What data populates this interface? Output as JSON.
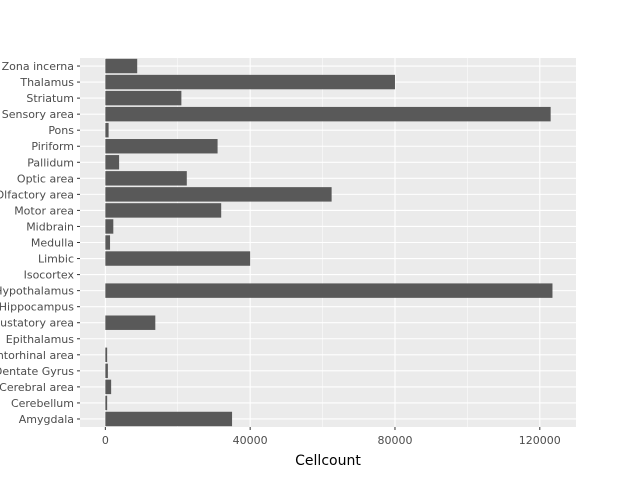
{
  "chart_data": {
    "type": "bar",
    "orientation": "horizontal",
    "xlabel": "Cellcount",
    "ylabel": "",
    "xlim": [
      -7000,
      130000
    ],
    "x_ticks": [
      0,
      40000,
      80000,
      120000
    ],
    "x_tick_labels": [
      "0",
      "40000",
      "80000",
      "120000"
    ],
    "categories": [
      "Zona incerna",
      "Thalamus",
      "Striatum",
      "Sensory area",
      "Pons",
      "Piriform",
      "Pallidum",
      "Optic area",
      "Olfactory area",
      "Motor area",
      "Midbrain",
      "Medulla",
      "Limbic",
      "Isocortex",
      "Hypothalamus",
      "Hippocampus",
      "Gustatory area",
      "Epithalamus",
      "Entorhinal area",
      "Dentate Gyrus",
      "Cerebral area",
      "Cerebellum",
      "Amygdala"
    ],
    "values": [
      8800,
      80000,
      21000,
      123000,
      900,
      31000,
      3800,
      22500,
      62500,
      32000,
      2200,
      1300,
      40000,
      0,
      123500,
      0,
      13800,
      0,
      500,
      700,
      1600,
      500,
      35000
    ],
    "colors": {
      "bar": "#595959",
      "panel": "#ebebeb",
      "grid": "#ffffff"
    },
    "grid": true,
    "legend": "none"
  }
}
